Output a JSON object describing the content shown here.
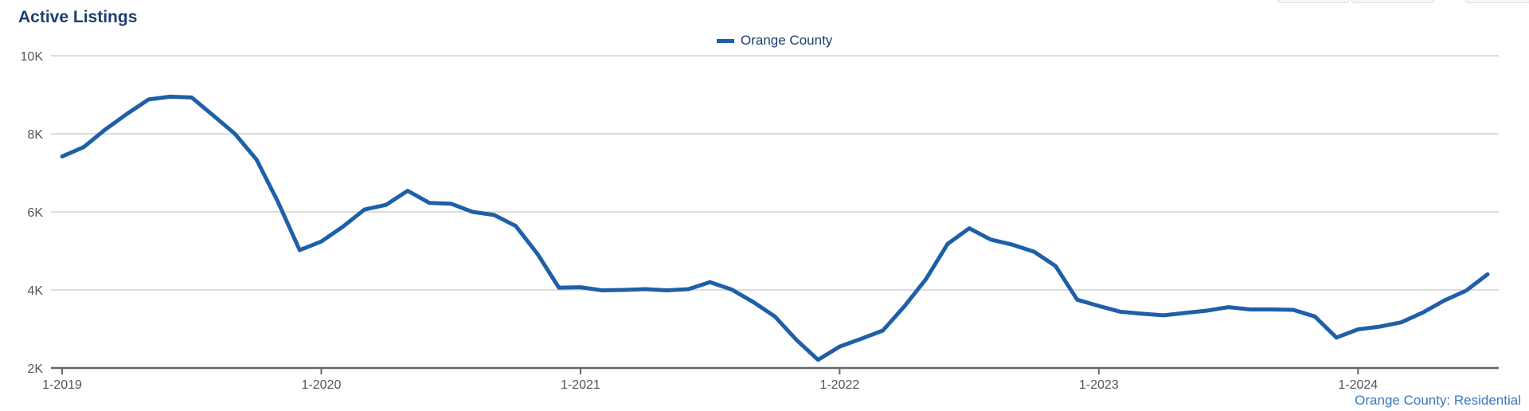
{
  "title": "Active Listings",
  "legend": {
    "series_name": "Orange County"
  },
  "footer": {
    "source_label": "Orange County: Residential"
  },
  "colors": {
    "series": "#1e5fa8",
    "title": "#1c3f6e",
    "grid": "#c8c8c8",
    "axis": "#666666",
    "footer": "#3a78bf"
  },
  "chart_data": {
    "type": "line",
    "title": "Active Listings",
    "xlabel": "",
    "ylabel": "",
    "ylim": [
      2000,
      10000
    ],
    "y_ticks": [
      {
        "value": 2000,
        "label": "2K"
      },
      {
        "value": 4000,
        "label": "4K"
      },
      {
        "value": 6000,
        "label": "6K"
      },
      {
        "value": 8000,
        "label": "8K"
      },
      {
        "value": 10000,
        "label": "10K"
      }
    ],
    "x_ticks": [
      "1-2019",
      "1-2020",
      "1-2021",
      "1-2022",
      "1-2023",
      "1-2024"
    ],
    "x_range": [
      "1-2019",
      "7-2024"
    ],
    "grid": true,
    "legend_position": "top-center",
    "series": [
      {
        "name": "Orange County",
        "x": [
          "1-2019",
          "2-2019",
          "3-2019",
          "4-2019",
          "5-2019",
          "6-2019",
          "7-2019",
          "8-2019",
          "9-2019",
          "10-2019",
          "11-2019",
          "12-2019",
          "1-2020",
          "2-2020",
          "3-2020",
          "4-2020",
          "5-2020",
          "6-2020",
          "7-2020",
          "8-2020",
          "9-2020",
          "10-2020",
          "11-2020",
          "12-2020",
          "1-2021",
          "2-2021",
          "3-2021",
          "4-2021",
          "5-2021",
          "6-2021",
          "7-2021",
          "8-2021",
          "9-2021",
          "10-2021",
          "11-2021",
          "12-2021",
          "1-2022",
          "2-2022",
          "3-2022",
          "4-2022",
          "5-2022",
          "6-2022",
          "7-2022",
          "8-2022",
          "9-2022",
          "10-2022",
          "11-2022",
          "12-2022",
          "1-2023",
          "2-2023",
          "3-2023",
          "4-2023",
          "5-2023",
          "6-2023",
          "7-2023",
          "8-2023",
          "9-2023",
          "10-2023",
          "11-2023",
          "12-2023",
          "1-2024",
          "2-2024",
          "3-2024",
          "4-2024",
          "5-2024",
          "6-2024",
          "7-2024"
        ],
        "values": [
          7420,
          7660,
          8110,
          8510,
          8880,
          8950,
          8930,
          8470,
          8000,
          7340,
          6250,
          5020,
          5240,
          5620,
          6060,
          6180,
          6540,
          6230,
          6210,
          6000,
          5920,
          5640,
          4930,
          4060,
          4070,
          3990,
          4000,
          4020,
          3990,
          4020,
          4200,
          4010,
          3690,
          3320,
          2720,
          2210,
          2550,
          2750,
          2960,
          3580,
          4280,
          5180,
          5580,
          5290,
          5160,
          4980,
          4610,
          3750,
          3590,
          3440,
          3390,
          3350,
          3410,
          3470,
          3560,
          3500,
          3500,
          3490,
          3320,
          2780,
          2990,
          3060,
          3170,
          3420,
          3730,
          3980,
          4400
        ]
      }
    ]
  }
}
